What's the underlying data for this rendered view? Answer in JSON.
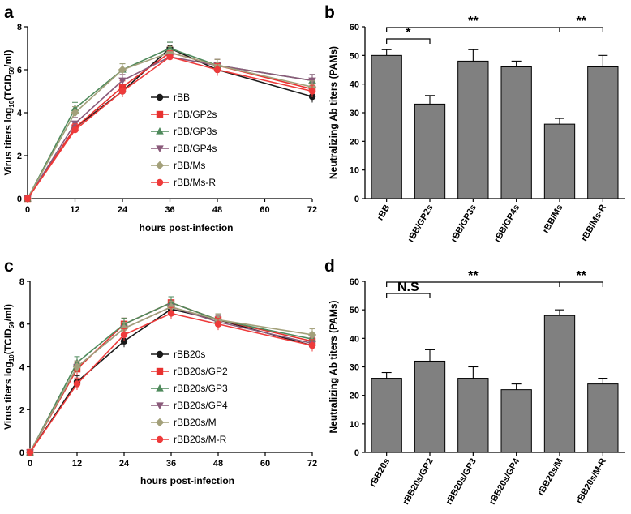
{
  "chart_data": [
    {
      "panel": "a",
      "type": "line",
      "xlabel": "hours post-infection",
      "ylabel": "Virus titers log10(TCID50/ml)",
      "ylabel_main": "Virus titers log",
      "ylabel_sub": "10",
      "ylabel_paren_open": "(TCID",
      "ylabel_sub2": "50",
      "ylabel_tail": "/ml)",
      "x": [
        0,
        12,
        24,
        36,
        48,
        72
      ],
      "xticks": [
        "0",
        "12",
        "24",
        "36",
        "48",
        "60",
        "72"
      ],
      "yticks": [
        "0",
        "2",
        "4",
        "6",
        "8"
      ],
      "xlim": [
        0,
        72
      ],
      "ylim": [
        0,
        8
      ],
      "series": [
        {
          "name": "rBB",
          "marker": "circle",
          "color": "#1a1a1a",
          "values": [
            0,
            3.3,
            5.0,
            7.0,
            6.0,
            4.75
          ]
        },
        {
          "name": "rBB/GP2s",
          "marker": "square",
          "color": "#e8312f",
          "values": [
            0,
            3.3,
            5.2,
            6.8,
            6.2,
            5.1
          ]
        },
        {
          "name": "rBB/GP3s",
          "marker": "triangle",
          "color": "#4f8a5c",
          "values": [
            0,
            4.2,
            6.0,
            7.0,
            6.2,
            5.5
          ]
        },
        {
          "name": "rBB/GP4s",
          "marker": "triangle-down",
          "color": "#8a5a7a",
          "values": [
            0,
            3.5,
            5.5,
            6.6,
            6.2,
            5.5
          ]
        },
        {
          "name": "rBB/Ms",
          "marker": "diamond",
          "color": "#a3a07a",
          "values": [
            0,
            4.0,
            6.0,
            6.8,
            6.2,
            5.2
          ]
        },
        {
          "name": "rBB/Ms-R",
          "marker": "circle",
          "color": "#ee3b3b",
          "values": [
            0,
            3.2,
            5.0,
            6.6,
            6.0,
            5.0
          ]
        }
      ]
    },
    {
      "panel": "b",
      "type": "bar",
      "ylabel": "Neutralizing Ab titers (PAMs)",
      "categories": [
        "rBB",
        "rBB/GP2s",
        "rBB/GP3s",
        "rBB/GP4s",
        "rBB/Ms",
        "rBB/Ms-R"
      ],
      "values": [
        50,
        33,
        48,
        46,
        26,
        46
      ],
      "errors": [
        2,
        3,
        4,
        2,
        2,
        4
      ],
      "yticks": [
        "0",
        "10",
        "20",
        "30",
        "40",
        "50",
        "60"
      ],
      "ylim": [
        0,
        60
      ],
      "color": "#808080",
      "significance": [
        {
          "from": 0,
          "to": 1,
          "label": "*"
        },
        {
          "from": 0,
          "to": 4,
          "label": "**"
        },
        {
          "from": 4,
          "to": 5,
          "label": "**"
        }
      ]
    },
    {
      "panel": "c",
      "type": "line",
      "xlabel": "hours post-infection",
      "ylabel": "Virus titers log10(TCID50/ml)",
      "ylabel_main": "Virus titers log",
      "ylabel_sub": "10",
      "ylabel_paren_open": "(TCID",
      "ylabel_sub2": "50",
      "ylabel_tail": "/ml)",
      "x": [
        0,
        12,
        24,
        36,
        48,
        72
      ],
      "xticks": [
        "0",
        "12",
        "24",
        "36",
        "48",
        "60",
        "72"
      ],
      "yticks": [
        "0",
        "2",
        "4",
        "6",
        "8"
      ],
      "xlim": [
        0,
        72
      ],
      "ylim": [
        0,
        8
      ],
      "series": [
        {
          "name": "rBB20s",
          "marker": "circle",
          "color": "#1a1a1a",
          "values": [
            0,
            3.3,
            5.2,
            6.7,
            6.2,
            5.0
          ]
        },
        {
          "name": "rBB20s/GP2",
          "marker": "square",
          "color": "#e8312f",
          "values": [
            0,
            3.9,
            6.0,
            7.0,
            6.2,
            5.2
          ]
        },
        {
          "name": "rBB20s/GP3",
          "marker": "triangle",
          "color": "#4f8a5c",
          "values": [
            0,
            4.2,
            6.0,
            7.0,
            6.2,
            5.3
          ]
        },
        {
          "name": "rBB20s/GP4",
          "marker": "triangle-down",
          "color": "#8a5a7a",
          "values": [
            0,
            4.0,
            5.8,
            6.8,
            6.1,
            5.1
          ]
        },
        {
          "name": "rBB20s/M",
          "marker": "diamond",
          "color": "#a3a07a",
          "values": [
            0,
            4.0,
            5.8,
            6.8,
            6.2,
            5.5
          ]
        },
        {
          "name": "rBB20s/M-R",
          "marker": "circle",
          "color": "#ee3b3b",
          "values": [
            0,
            3.2,
            5.5,
            6.5,
            6.0,
            5.0
          ]
        }
      ]
    },
    {
      "panel": "d",
      "type": "bar",
      "ylabel": "Neutralizing Ab titers (PAMs)",
      "categories": [
        "rBB20s",
        "rBB20s/GP2",
        "rBB20s/GP3",
        "rBB20s/GP4",
        "rBB20s/M",
        "rBB20s/M-R"
      ],
      "values": [
        26,
        32,
        26,
        22,
        48,
        24
      ],
      "errors": [
        2,
        4,
        4,
        2,
        2,
        2
      ],
      "yticks": [
        "0",
        "10",
        "20",
        "30",
        "40",
        "50",
        "60"
      ],
      "ylim": [
        0,
        60
      ],
      "color": "#808080",
      "significance": [
        {
          "from": 0,
          "to": 1,
          "label": "N.S"
        },
        {
          "from": 0,
          "to": 4,
          "label": "**"
        },
        {
          "from": 4,
          "to": 5,
          "label": "**"
        }
      ]
    }
  ]
}
